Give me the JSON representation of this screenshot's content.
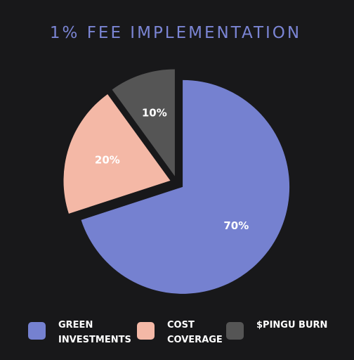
{
  "chart_data": {
    "type": "pie",
    "title": "1% FEE IMPLEMENTATION",
    "categories": [
      "GREEN INVESTMENTS",
      "COST COVERAGE",
      "$PINGU BURN"
    ],
    "values": [
      70,
      20,
      10
    ],
    "value_labels": [
      "70%",
      "20%",
      "10%"
    ],
    "colors": [
      "#7581d0",
      "#f4b8a6",
      "#555555"
    ],
    "legend": "bottom"
  }
}
